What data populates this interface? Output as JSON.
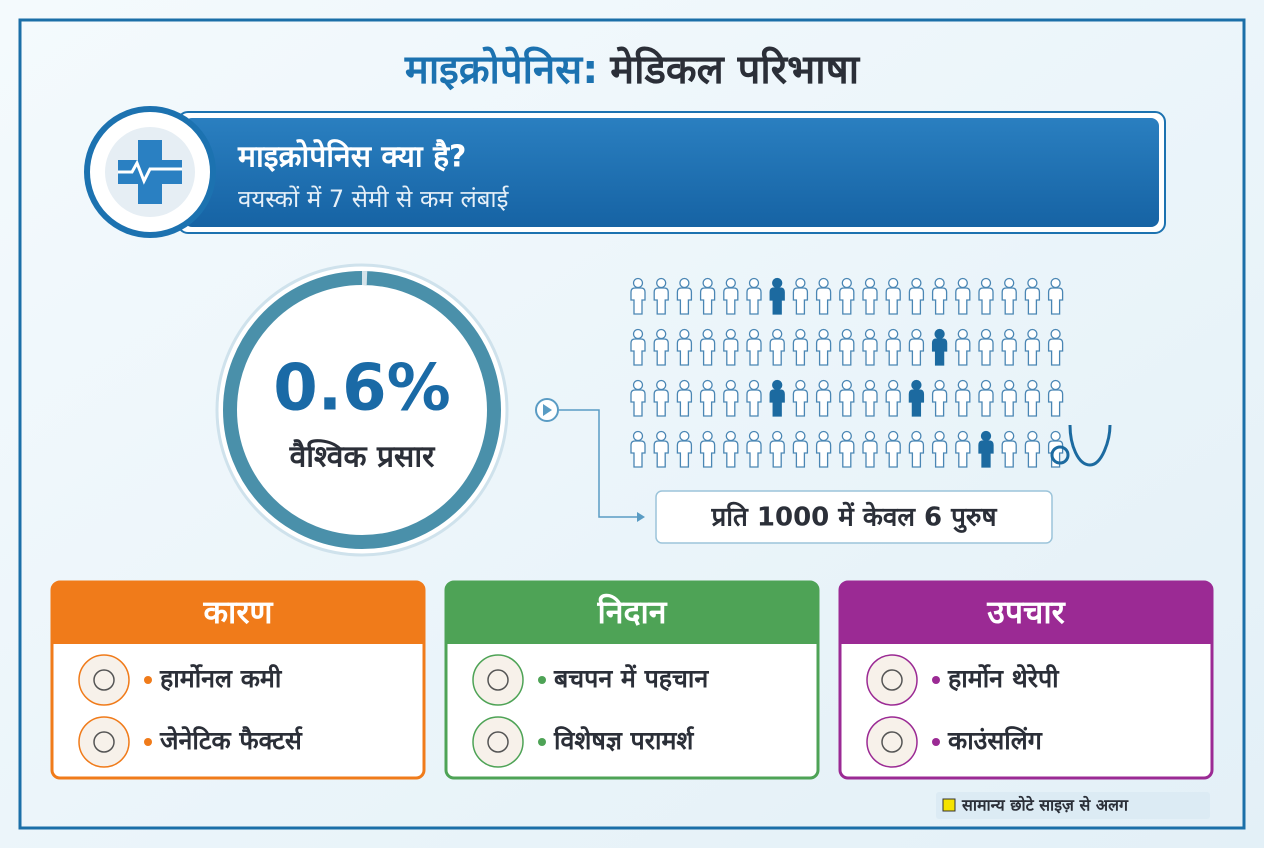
{
  "title": {
    "highlight": "माइक्रोपेनिस:",
    "rest": "मेडिकल परिभाषा"
  },
  "definition": {
    "heading": "माइक्रोपेनिस क्या है?",
    "text": "वयस्कों में 7 सेमी से कम लंबाई"
  },
  "stat": {
    "value": 0.6,
    "value_label": "0.6%",
    "label": "वैश्विक प्रसार"
  },
  "pictogram_caption": "प्रति 1000 में केवल 6 पुरुष",
  "cards": [
    {
      "title": "कारण",
      "color": "#f07b1a",
      "items": [
        "हार्मोनल कमी",
        "जेनेटिक फैक्टर्स"
      ]
    },
    {
      "title": "निदान",
      "color": "#4ea356",
      "items": [
        "बचपन में पहचान",
        "विशेषज्ञ परामर्श"
      ]
    },
    {
      "title": "उपचार",
      "color": "#9b2a94",
      "items": [
        "हार्मोन थेरेपी",
        "काउंसलिंग"
      ]
    }
  ],
  "footnote": "सामान्य छोटे साइज़ से अलग"
}
